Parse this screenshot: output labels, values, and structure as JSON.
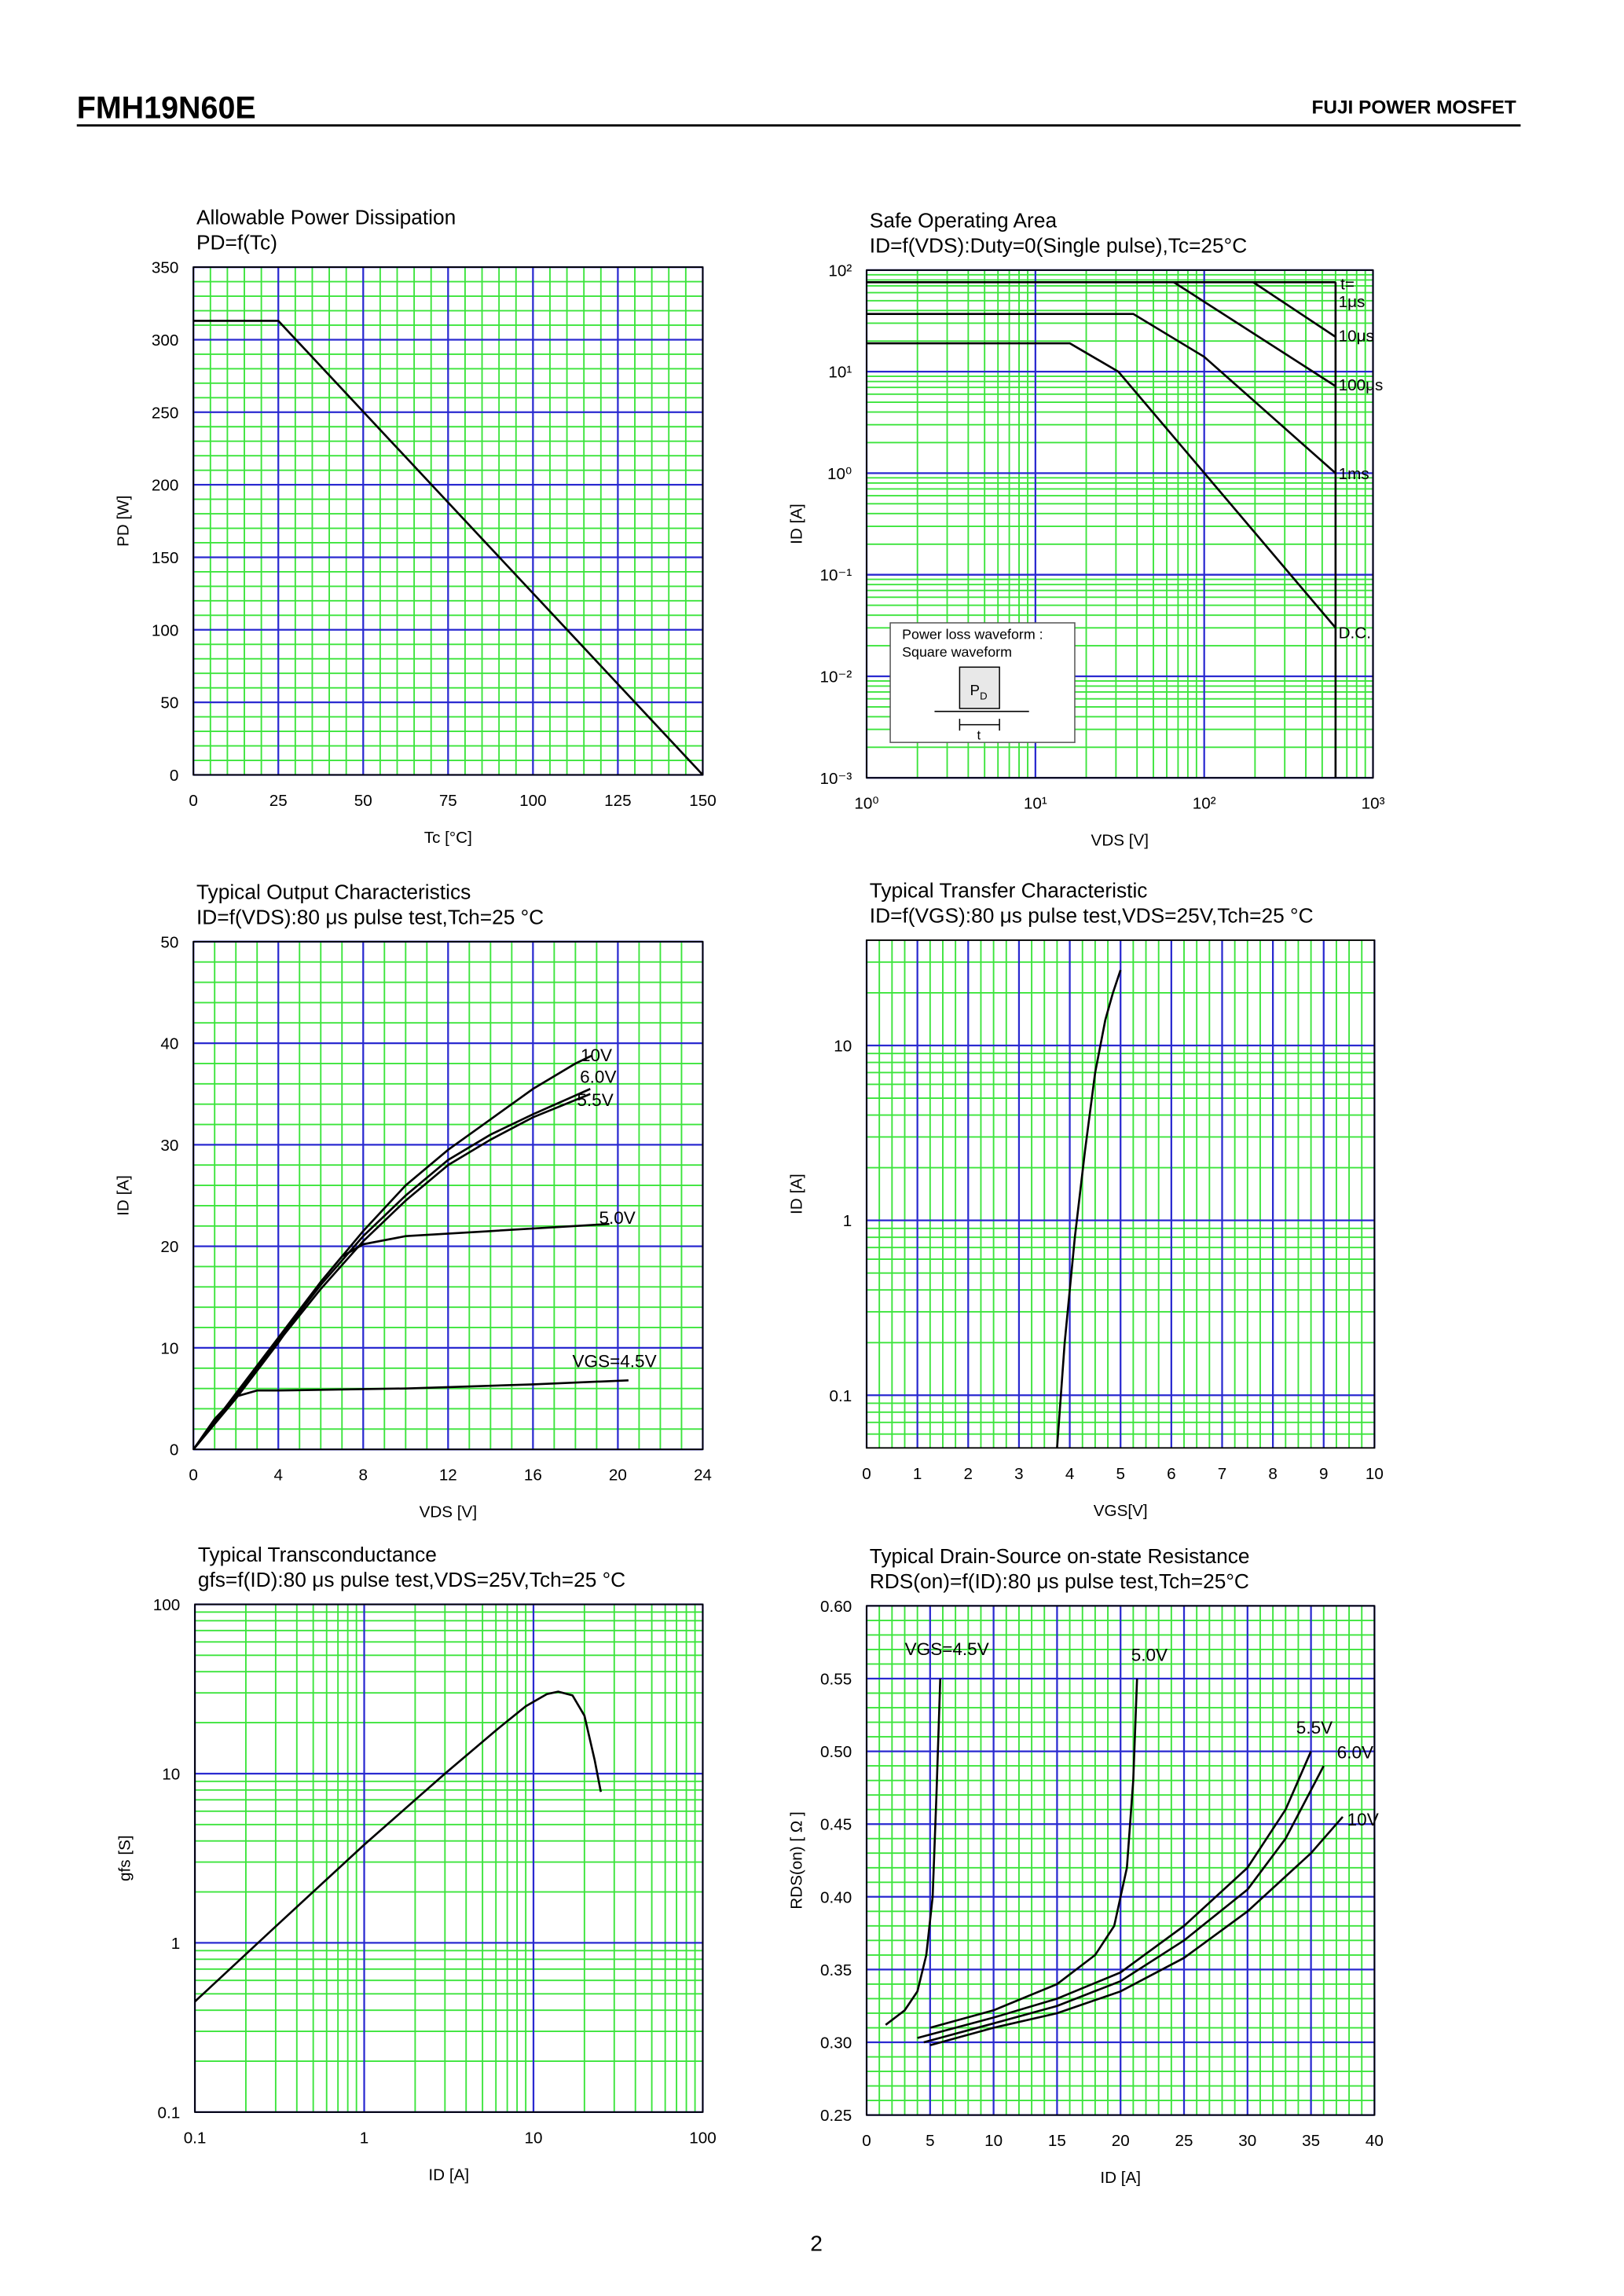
{
  "header": {
    "part": "FMH19N60E",
    "brand": "FUJI POWER MOSFET"
  },
  "footer": {
    "page": "2"
  },
  "chart_data": [
    {
      "type": "line",
      "title": "Allowable Power Dissipation",
      "subtitle": "PD=f(Tc)",
      "x_label": "Tc [°C]",
      "y_label": "PD [W]",
      "xlim": [
        0,
        150
      ],
      "xticks": [
        0,
        25,
        50,
        75,
        100,
        125,
        150
      ],
      "ylim": [
        0,
        350
      ],
      "yticks": [
        0,
        50,
        100,
        150,
        200,
        250,
        300,
        350
      ],
      "grid": true,
      "grid_color": "#2a2ad0",
      "minor_grid_color": "#3ce43c",
      "color": "#000000",
      "series": [
        {
          "x": [
            0,
            25,
            150
          ],
          "values": [
            313,
            313,
            0
          ]
        }
      ]
    },
    {
      "type": "line",
      "title": "Safe Operating Area",
      "subtitle": "ID=f(VDS):Duty=0(Single pulse),Tc=25°C",
      "x_label": "VDS [V]",
      "y_label": "ID [A]",
      "xlog": true,
      "ylog": true,
      "xlim": [
        1,
        1000
      ],
      "xticks": [
        {
          "value": 1,
          "label": "10⁰"
        },
        {
          "value": 10,
          "label": "10¹"
        },
        {
          "value": 100,
          "label": "10²"
        },
        {
          "value": 1000,
          "label": "10³"
        }
      ],
      "ylim": [
        0.001,
        100
      ],
      "yticks": [
        {
          "value": 0.001,
          "label": "10⁻³"
        },
        {
          "value": 0.01,
          "label": "10⁻²"
        },
        {
          "value": 0.1,
          "label": "10⁻¹"
        },
        {
          "value": 1,
          "label": "10⁰"
        },
        {
          "value": 10,
          "label": "10¹"
        },
        {
          "value": 100,
          "label": "10²"
        }
      ],
      "grid": true,
      "grid_color": "#2a2ad0",
      "minor_grid_color": "#3ce43c",
      "color": "#000000",
      "annotation": "t=",
      "inset": {
        "lines": [
          "Power loss waveform :",
          "Square waveform"
        ],
        "pulse": "P",
        "pulse_sub": "D",
        "width": "t"
      },
      "series": [
        {
          "name": "1μs",
          "x": [
            1,
            600
          ],
          "values": [
            76,
            76
          ]
        },
        {
          "name": "10μs",
          "x": [
            195,
            600
          ],
          "values": [
            76,
            22
          ]
        },
        {
          "name": "100μs",
          "x": [
            66,
            600
          ],
          "values": [
            76,
            7.2
          ]
        },
        {
          "name": "1ms",
          "x": [
            1,
            38,
            100,
            600
          ],
          "values": [
            37,
            37,
            14,
            1
          ]
        },
        {
          "name": "D.C.",
          "x": [
            1,
            16,
            31,
            600
          ],
          "values": [
            19,
            19,
            10,
            0.03
          ]
        },
        {
          "x": [
            600,
            600
          ],
          "values": [
            76,
            0.001
          ]
        }
      ]
    },
    {
      "type": "line",
      "title": "Typical Output Characteristics",
      "subtitle": "ID=f(VDS):80 μs pulse test,Tch=25 °C",
      "x_label": "VDS [V]",
      "y_label": "ID [A]",
      "xlim": [
        0,
        24
      ],
      "xticks": [
        0,
        4,
        8,
        12,
        16,
        20,
        24
      ],
      "ylim": [
        0,
        50
      ],
      "yticks": [
        0,
        10,
        20,
        30,
        40,
        50
      ],
      "grid": true,
      "grid_color": "#2a2ad0",
      "minor_grid_color": "#3ce43c",
      "color": "#000000",
      "series": [
        {
          "name": "10V",
          "x": [
            0,
            2,
            4,
            6,
            8,
            10,
            12,
            14,
            16,
            18,
            18.8
          ],
          "values": [
            0,
            5.5,
            11,
            16.5,
            21.5,
            26,
            29.5,
            32.5,
            35.5,
            38,
            38.8
          ]
        },
        {
          "name": "6.0V",
          "x": [
            0,
            2,
            4,
            6,
            8,
            10,
            12,
            14,
            16,
            18.7
          ],
          "values": [
            0,
            5.4,
            10.8,
            16.2,
            21,
            25,
            28.5,
            31,
            33,
            35.5
          ]
        },
        {
          "name": "5.5V",
          "x": [
            0,
            2,
            4,
            6,
            8,
            10,
            12,
            14,
            16,
            18.7
          ],
          "values": [
            0,
            5.3,
            10.6,
            15.8,
            20.5,
            24.5,
            28,
            30.5,
            32.7,
            35
          ]
        },
        {
          "name": "5.0V",
          "x": [
            0,
            2,
            4,
            6,
            7,
            8,
            10,
            14,
            18,
            19.6
          ],
          "values": [
            0,
            5,
            10.5,
            16.5,
            19,
            20.2,
            21,
            21.5,
            22,
            22.2
          ]
        },
        {
          "name": "VGS=4.5V",
          "x": [
            0,
            1,
            2,
            3,
            4,
            10,
            16,
            20.5
          ],
          "values": [
            0,
            3,
            5.2,
            5.8,
            5.8,
            6,
            6.4,
            6.8
          ]
        }
      ]
    },
    {
      "type": "line",
      "title": "Typical Transfer Characteristic",
      "subtitle": "ID=f(VGS):80 μs pulse test,VDS=25V,Tch=25 °C",
      "x_label": "VGS[V]",
      "y_label": "ID [A]",
      "ylog": true,
      "xlim": [
        0,
        10
      ],
      "xticks": [
        0,
        1,
        2,
        3,
        4,
        5,
        6,
        7,
        8,
        9,
        10
      ],
      "ylim": [
        0.05,
        40
      ],
      "yticks": [
        0.1,
        1,
        10
      ],
      "grid": true,
      "grid_color": "#2a2ad0",
      "minor_grid_color": "#3ce43c",
      "color": "#000000",
      "series": [
        {
          "x": [
            3.75,
            3.9,
            4.1,
            4.3,
            4.5,
            4.7,
            4.85,
            5.0
          ],
          "values": [
            0.05,
            0.2,
            0.8,
            2.5,
            7,
            14,
            20,
            27
          ]
        }
      ]
    },
    {
      "type": "line",
      "title": "Typical Transconductance",
      "subtitle": "gfs=f(ID):80 μs pulse test,VDS=25V,Tch=25 °C",
      "x_label": "ID [A]",
      "y_label": "gfs [S]",
      "xlog": true,
      "ylog": true,
      "xlim": [
        0.1,
        100
      ],
      "xticks": [
        0.1,
        1,
        10,
        100
      ],
      "ylim": [
        0.1,
        100
      ],
      "yticks": [
        0.1,
        1,
        10,
        100
      ],
      "grid": true,
      "grid_color": "#2a2ad0",
      "minor_grid_color": "#3ce43c",
      "color": "#000000",
      "series": [
        {
          "x": [
            0.1,
            0.3,
            1,
            3,
            6,
            9,
            12,
            14,
            17,
            20,
            23,
            25
          ],
          "values": [
            0.45,
            1.25,
            3.8,
            10,
            18,
            25,
            29.5,
            30.5,
            29,
            22,
            12,
            7.8
          ]
        }
      ]
    },
    {
      "type": "line",
      "title": "Typical Drain-Source on-state Resistance",
      "subtitle": "RDS(on)=f(ID):80 μs pulse test,Tch=25°C",
      "x_label": "ID [A]",
      "y_label": "RDS(on) [ Ω ]",
      "xlim": [
        0,
        40
      ],
      "xticks": [
        0,
        5,
        10,
        15,
        20,
        25,
        30,
        35,
        40
      ],
      "ylim": [
        0.25,
        0.6
      ],
      "yticks": [
        0.25,
        {
          "value": 0.3,
          "label": "0.30"
        },
        0.35,
        {
          "value": 0.4,
          "label": "0.40"
        },
        0.45,
        {
          "value": 0.5,
          "label": "0.50"
        },
        0.55,
        {
          "value": 0.6,
          "label": "0.60"
        }
      ],
      "grid": true,
      "grid_color": "#2a2ad0",
      "minor_grid_color": "#3ce43c",
      "color": "#000000",
      "series": [
        {
          "name": "VGS=4.5V",
          "x": [
            1.5,
            3,
            4,
            4.7,
            5.2,
            5.5,
            5.8
          ],
          "values": [
            0.312,
            0.322,
            0.335,
            0.36,
            0.4,
            0.47,
            0.55
          ]
        },
        {
          "name": "5.0V",
          "x": [
            5,
            10,
            15,
            18,
            19.5,
            20.5,
            21,
            21.3
          ],
          "values": [
            0.31,
            0.322,
            0.34,
            0.36,
            0.38,
            0.42,
            0.48,
            0.55
          ]
        },
        {
          "name": "5.5V",
          "x": [
            4,
            10,
            15,
            20,
            25,
            30,
            33,
            35
          ],
          "values": [
            0.303,
            0.317,
            0.33,
            0.348,
            0.38,
            0.42,
            0.46,
            0.5
          ]
        },
        {
          "name": "6.0V",
          "x": [
            4.5,
            10,
            15,
            20,
            25,
            30,
            33,
            36
          ],
          "values": [
            0.3,
            0.313,
            0.325,
            0.342,
            0.37,
            0.405,
            0.44,
            0.49
          ]
        },
        {
          "name": "10V",
          "x": [
            5,
            10,
            15,
            20,
            25,
            30,
            35,
            37.5
          ],
          "values": [
            0.298,
            0.31,
            0.32,
            0.335,
            0.358,
            0.39,
            0.43,
            0.455
          ]
        }
      ]
    }
  ]
}
